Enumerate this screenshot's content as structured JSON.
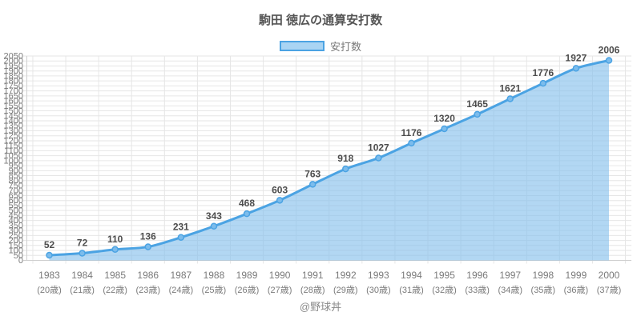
{
  "header": {
    "title": "駒田 徳広の通算安打数"
  },
  "legend": {
    "label": "安打数"
  },
  "footer": {
    "credit": "@野球丼"
  },
  "chart_data": {
    "type": "area",
    "title": "駒田 徳広の通算安打数",
    "legend_label": "安打数",
    "legend_position": "top",
    "grid": true,
    "categories": [
      "1983",
      "1984",
      "1985",
      "1986",
      "1987",
      "1988",
      "1989",
      "1990",
      "1991",
      "1992",
      "1993",
      "1994",
      "1995",
      "1996",
      "1997",
      "1998",
      "1999",
      "2000"
    ],
    "age_labels": [
      "(20歳)",
      "(21歳)",
      "(22歳)",
      "(23歳)",
      "(24歳)",
      "(25歳)",
      "(26歳)",
      "(27歳)",
      "(28歳)",
      "(29歳)",
      "(30歳)",
      "(31歳)",
      "(32歳)",
      "(33歳)",
      "(34歳)",
      "(35歳)",
      "(36歳)",
      "(37歳)"
    ],
    "values": [
      52,
      72,
      110,
      136,
      231,
      343,
      468,
      603,
      763,
      918,
      1027,
      1176,
      1320,
      1465,
      1621,
      1776,
      1927,
      2006
    ],
    "xlabel": "",
    "ylabel": "",
    "ylim": [
      0,
      2050
    ],
    "y_tick_step": 50,
    "colors": {
      "line": "#4ba3e3",
      "area_fill": "rgba(130,191,236,0.62)",
      "marker_fill": "#7cbcec",
      "marker_stroke": "#4ba3e3",
      "grid": "#e6e6e6",
      "axis": "#cfcfcf",
      "value_label": "#4d4d4d",
      "tick_label": "#7a7a7a",
      "title": "#555555"
    }
  }
}
